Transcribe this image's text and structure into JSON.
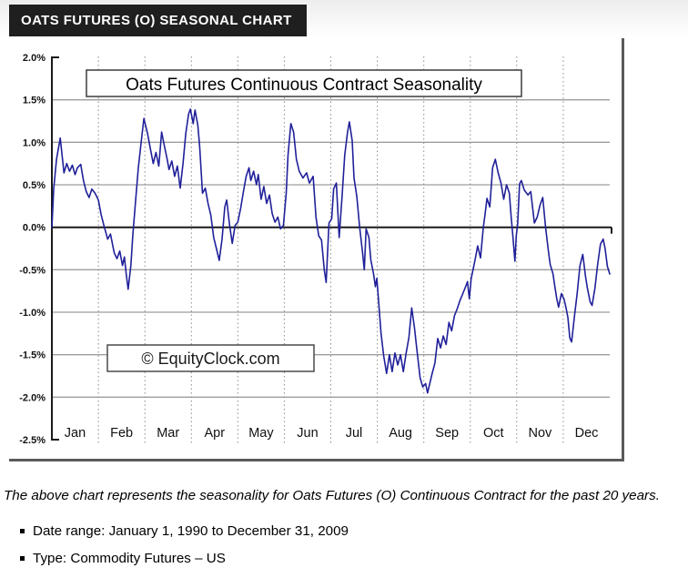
{
  "header": {
    "title": "OATS FUTURES (O) SEASONAL CHART"
  },
  "chart_data": {
    "type": "line",
    "title": "Oats Futures Continuous Contract Seasonality",
    "watermark": "© EquityClock.com",
    "categories": [
      "Jan",
      "Feb",
      "Mar",
      "Apr",
      "May",
      "Jun",
      "Jul",
      "Aug",
      "Sep",
      "Oct",
      "Nov",
      "Dec"
    ],
    "ytick_labels": [
      "2.0%",
      "1.5%",
      "1.0%",
      "0.5%",
      "0.0%",
      "-0.5%",
      "-1.0%",
      "-1.5%",
      "-2.0%",
      "-2.5%"
    ],
    "ytick_values": [
      2.0,
      1.5,
      1.0,
      0.5,
      0.0,
      -0.5,
      -1.0,
      -1.5,
      -2.0,
      -2.5
    ],
    "grid_values": [
      1.5,
      1.0,
      0.5,
      -0.5,
      -1.0,
      -1.5,
      -2.0
    ],
    "ylim": [
      -2.5,
      2.0
    ],
    "xlim_months": [
      0,
      12
    ],
    "grid": "on",
    "legend": "none",
    "line_color": "#20209a",
    "series": [
      {
        "points": [
          [
            0.0,
            0.0
          ],
          [
            0.04,
            0.45
          ],
          [
            0.1,
            0.8
          ],
          [
            0.18,
            1.05
          ],
          [
            0.22,
            0.85
          ],
          [
            0.26,
            0.64
          ],
          [
            0.32,
            0.75
          ],
          [
            0.38,
            0.66
          ],
          [
            0.44,
            0.73
          ],
          [
            0.5,
            0.62
          ],
          [
            0.55,
            0.7
          ],
          [
            0.62,
            0.74
          ],
          [
            0.68,
            0.55
          ],
          [
            0.74,
            0.42
          ],
          [
            0.8,
            0.35
          ],
          [
            0.86,
            0.45
          ],
          [
            0.93,
            0.4
          ],
          [
            1.0,
            0.32
          ],
          [
            1.06,
            0.15
          ],
          [
            1.12,
            0.02
          ],
          [
            1.2,
            -0.14
          ],
          [
            1.26,
            -0.08
          ],
          [
            1.34,
            -0.3
          ],
          [
            1.4,
            -0.37
          ],
          [
            1.46,
            -0.28
          ],
          [
            1.52,
            -0.45
          ],
          [
            1.56,
            -0.35
          ],
          [
            1.6,
            -0.55
          ],
          [
            1.64,
            -0.73
          ],
          [
            1.7,
            -0.45
          ],
          [
            1.74,
            -0.1
          ],
          [
            1.8,
            0.3
          ],
          [
            1.86,
            0.7
          ],
          [
            1.92,
            1.0
          ],
          [
            1.98,
            1.28
          ],
          [
            2.06,
            1.1
          ],
          [
            2.12,
            0.92
          ],
          [
            2.18,
            0.75
          ],
          [
            2.24,
            0.88
          ],
          [
            2.3,
            0.72
          ],
          [
            2.36,
            1.12
          ],
          [
            2.42,
            0.96
          ],
          [
            2.48,
            0.8
          ],
          [
            2.52,
            0.68
          ],
          [
            2.58,
            0.78
          ],
          [
            2.64,
            0.6
          ],
          [
            2.7,
            0.72
          ],
          [
            2.76,
            0.46
          ],
          [
            2.82,
            0.75
          ],
          [
            2.88,
            1.1
          ],
          [
            2.94,
            1.33
          ],
          [
            2.98,
            1.39
          ],
          [
            3.04,
            1.22
          ],
          [
            3.08,
            1.38
          ],
          [
            3.14,
            1.2
          ],
          [
            3.18,
            0.95
          ],
          [
            3.24,
            0.4
          ],
          [
            3.3,
            0.46
          ],
          [
            3.36,
            0.28
          ],
          [
            3.42,
            0.14
          ],
          [
            3.48,
            -0.12
          ],
          [
            3.54,
            -0.25
          ],
          [
            3.6,
            -0.39
          ],
          [
            3.66,
            -0.14
          ],
          [
            3.72,
            0.24
          ],
          [
            3.76,
            0.32
          ],
          [
            3.82,
            0.04
          ],
          [
            3.88,
            -0.19
          ],
          [
            3.94,
            0.02
          ],
          [
            4.0,
            0.06
          ],
          [
            4.06,
            0.22
          ],
          [
            4.12,
            0.42
          ],
          [
            4.18,
            0.6
          ],
          [
            4.24,
            0.7
          ],
          [
            4.28,
            0.55
          ],
          [
            4.34,
            0.66
          ],
          [
            4.4,
            0.5
          ],
          [
            4.44,
            0.62
          ],
          [
            4.5,
            0.33
          ],
          [
            4.56,
            0.48
          ],
          [
            4.62,
            0.28
          ],
          [
            4.68,
            0.38
          ],
          [
            4.74,
            0.16
          ],
          [
            4.8,
            0.06
          ],
          [
            4.86,
            0.12
          ],
          [
            4.92,
            -0.02
          ],
          [
            4.98,
            0.02
          ],
          [
            5.04,
            0.4
          ],
          [
            5.08,
            0.85
          ],
          [
            5.14,
            1.22
          ],
          [
            5.2,
            1.12
          ],
          [
            5.26,
            0.8
          ],
          [
            5.32,
            0.66
          ],
          [
            5.4,
            0.58
          ],
          [
            5.48,
            0.64
          ],
          [
            5.54,
            0.52
          ],
          [
            5.62,
            0.6
          ],
          [
            5.68,
            0.12
          ],
          [
            5.74,
            -0.1
          ],
          [
            5.8,
            -0.15
          ],
          [
            5.86,
            -0.5
          ],
          [
            5.9,
            -0.65
          ],
          [
            5.96,
            0.05
          ],
          [
            6.02,
            0.1
          ],
          [
            6.06,
            0.45
          ],
          [
            6.12,
            0.52
          ],
          [
            6.18,
            -0.12
          ],
          [
            6.24,
            0.35
          ],
          [
            6.3,
            0.85
          ],
          [
            6.36,
            1.12
          ],
          [
            6.4,
            1.24
          ],
          [
            6.46,
            1.02
          ],
          [
            6.5,
            0.58
          ],
          [
            6.56,
            0.36
          ],
          [
            6.62,
            0.0
          ],
          [
            6.68,
            -0.28
          ],
          [
            6.72,
            -0.5
          ],
          [
            6.76,
            -0.02
          ],
          [
            6.82,
            -0.12
          ],
          [
            6.86,
            -0.38
          ],
          [
            6.92,
            -0.55
          ],
          [
            6.96,
            -0.7
          ],
          [
            6.99,
            -0.6
          ],
          [
            7.04,
            -0.95
          ],
          [
            7.08,
            -1.25
          ],
          [
            7.14,
            -1.52
          ],
          [
            7.2,
            -1.72
          ],
          [
            7.26,
            -1.5
          ],
          [
            7.32,
            -1.7
          ],
          [
            7.38,
            -1.48
          ],
          [
            7.44,
            -1.62
          ],
          [
            7.5,
            -1.5
          ],
          [
            7.56,
            -1.7
          ],
          [
            7.62,
            -1.48
          ],
          [
            7.68,
            -1.3
          ],
          [
            7.74,
            -0.95
          ],
          [
            7.8,
            -1.18
          ],
          [
            7.86,
            -1.48
          ],
          [
            7.92,
            -1.77
          ],
          [
            7.98,
            -1.88
          ],
          [
            8.04,
            -1.84
          ],
          [
            8.08,
            -1.95
          ],
          [
            8.12,
            -1.86
          ],
          [
            8.18,
            -1.72
          ],
          [
            8.24,
            -1.6
          ],
          [
            8.3,
            -1.31
          ],
          [
            8.36,
            -1.42
          ],
          [
            8.42,
            -1.28
          ],
          [
            8.48,
            -1.38
          ],
          [
            8.54,
            -1.12
          ],
          [
            8.6,
            -1.22
          ],
          [
            8.66,
            -1.04
          ],
          [
            8.72,
            -0.96
          ],
          [
            8.78,
            -0.86
          ],
          [
            8.84,
            -0.78
          ],
          [
            8.9,
            -0.7
          ],
          [
            8.94,
            -0.64
          ],
          [
            8.98,
            -0.84
          ],
          [
            9.02,
            -0.6
          ],
          [
            9.06,
            -0.5
          ],
          [
            9.1,
            -0.39
          ],
          [
            9.16,
            -0.22
          ],
          [
            9.22,
            -0.36
          ],
          [
            9.28,
            0.0
          ],
          [
            9.32,
            0.16
          ],
          [
            9.36,
            0.34
          ],
          [
            9.42,
            0.24
          ],
          [
            9.48,
            0.7
          ],
          [
            9.54,
            0.8
          ],
          [
            9.6,
            0.64
          ],
          [
            9.66,
            0.52
          ],
          [
            9.72,
            0.33
          ],
          [
            9.78,
            0.5
          ],
          [
            9.84,
            0.4
          ],
          [
            9.88,
            0.12
          ],
          [
            9.92,
            -0.12
          ],
          [
            9.96,
            -0.4
          ],
          [
            9.99,
            -0.1
          ],
          [
            10.02,
            0.05
          ],
          [
            10.06,
            0.51
          ],
          [
            10.1,
            0.55
          ],
          [
            10.16,
            0.44
          ],
          [
            10.24,
            0.38
          ],
          [
            10.3,
            0.42
          ],
          [
            10.38,
            0.05
          ],
          [
            10.44,
            0.12
          ],
          [
            10.5,
            0.26
          ],
          [
            10.56,
            0.35
          ],
          [
            10.62,
            0.0
          ],
          [
            10.68,
            -0.28
          ],
          [
            10.72,
            -0.44
          ],
          [
            10.78,
            -0.55
          ],
          [
            10.82,
            -0.7
          ],
          [
            10.86,
            -0.84
          ],
          [
            10.9,
            -0.94
          ],
          [
            10.96,
            -0.78
          ],
          [
            11.02,
            -0.85
          ],
          [
            11.06,
            -0.95
          ],
          [
            11.1,
            -1.06
          ],
          [
            11.14,
            -1.3
          ],
          [
            11.18,
            -1.35
          ],
          [
            11.24,
            -1.05
          ],
          [
            11.3,
            -0.78
          ],
          [
            11.36,
            -0.45
          ],
          [
            11.42,
            -0.32
          ],
          [
            11.48,
            -0.58
          ],
          [
            11.52,
            -0.72
          ],
          [
            11.58,
            -0.88
          ],
          [
            11.62,
            -0.92
          ],
          [
            11.68,
            -0.72
          ],
          [
            11.74,
            -0.44
          ],
          [
            11.8,
            -0.2
          ],
          [
            11.86,
            -0.14
          ],
          [
            11.9,
            -0.25
          ],
          [
            11.95,
            -0.46
          ],
          [
            12.0,
            -0.55
          ]
        ]
      }
    ]
  },
  "caption": {
    "text": "The above chart represents the seasonality for Oats Futures (O) Continuous Contract for the past 20 years."
  },
  "details": {
    "items": [
      "Date range: January 1, 1990 to December 31, 2009",
      "Type: Commodity Futures – US"
    ]
  }
}
